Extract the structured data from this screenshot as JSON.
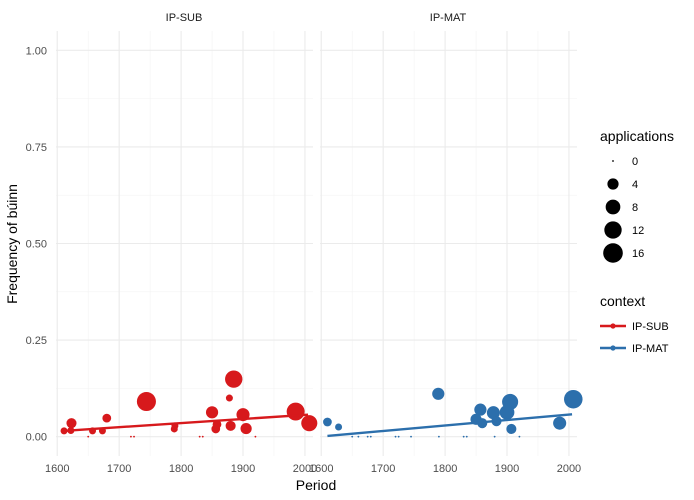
{
  "chart_data": {
    "type": "scatter",
    "xlabel": "Period",
    "ylabel": "Frequency of búinn",
    "xlim": [
      1598,
      2013
    ],
    "ylim": [
      -0.05,
      1.05
    ],
    "x_ticks": [
      1600,
      1700,
      1800,
      1900,
      2000
    ],
    "x_minor_ticks": [
      1650,
      1750,
      1850,
      1950
    ],
    "y_ticks": [
      0.0,
      0.25,
      0.5,
      0.75,
      1.0
    ],
    "y_tick_labels": [
      "0.00",
      "0.25",
      "0.50",
      "0.75",
      "1.00"
    ],
    "y_minor_ticks": [
      0.125,
      0.375,
      0.625,
      0.875
    ],
    "grid": true,
    "size_legend": {
      "title": "applications",
      "values": [
        0,
        4,
        8,
        12,
        16
      ],
      "labels": [
        "0",
        "4",
        "8",
        "12",
        "16"
      ]
    },
    "color_legend": {
      "title": "context",
      "placement": "right",
      "entries": [
        {
          "label": "IP-SUB",
          "color": "#d7191c"
        },
        {
          "label": "IP-MAT",
          "color": "#2c6fac"
        }
      ]
    },
    "panels": [
      {
        "strip": "IP-SUB",
        "context": "IP-SUB",
        "color": "#d7191c",
        "trend": {
          "x": [
            1610,
            2005
          ],
          "y": [
            0.015,
            0.057
          ]
        },
        "points": [
          {
            "x": 1611,
            "y": 0.015,
            "n": 1
          },
          {
            "x": 1623,
            "y": 0.035,
            "n": 3
          },
          {
            "x": 1622,
            "y": 0.016,
            "n": 1
          },
          {
            "x": 1650,
            "y": 0.0,
            "n": 0
          },
          {
            "x": 1657,
            "y": 0.015,
            "n": 1
          },
          {
            "x": 1673,
            "y": 0.015,
            "n": 1
          },
          {
            "x": 1680,
            "y": 0.048,
            "n": 2
          },
          {
            "x": 1719,
            "y": 0.0,
            "n": 0
          },
          {
            "x": 1724,
            "y": 0.0,
            "n": 0
          },
          {
            "x": 1744,
            "y": 0.091,
            "n": 15
          },
          {
            "x": 1789,
            "y": 0.02,
            "n": 1
          },
          {
            "x": 1790,
            "y": 0.028,
            "n": 1
          },
          {
            "x": 1830,
            "y": 0.0,
            "n": 0
          },
          {
            "x": 1835,
            "y": 0.0,
            "n": 0
          },
          {
            "x": 1850,
            "y": 0.063,
            "n": 5
          },
          {
            "x": 1856,
            "y": 0.02,
            "n": 2
          },
          {
            "x": 1858,
            "y": 0.032,
            "n": 2
          },
          {
            "x": 1878,
            "y": 0.1,
            "n": 1
          },
          {
            "x": 1880,
            "y": 0.028,
            "n": 3
          },
          {
            "x": 1885,
            "y": 0.149,
            "n": 12
          },
          {
            "x": 1900,
            "y": 0.057,
            "n": 6
          },
          {
            "x": 1905,
            "y": 0.021,
            "n": 4
          },
          {
            "x": 1920,
            "y": 0.0,
            "n": 0
          },
          {
            "x": 1985,
            "y": 0.065,
            "n": 13
          },
          {
            "x": 2007,
            "y": 0.035,
            "n": 10
          }
        ]
      },
      {
        "strip": "IP-MAT",
        "context": "IP-MAT",
        "color": "#2c6fac",
        "trend": {
          "x": [
            1610,
            2005
          ],
          "y": [
            0.002,
            0.058
          ]
        },
        "points": [
          {
            "x": 1610,
            "y": 0.038,
            "n": 2
          },
          {
            "x": 1628,
            "y": 0.025,
            "n": 1
          },
          {
            "x": 1650,
            "y": 0.0,
            "n": 0
          },
          {
            "x": 1660,
            "y": 0.0,
            "n": 0
          },
          {
            "x": 1675,
            "y": 0.0,
            "n": 0
          },
          {
            "x": 1680,
            "y": 0.0,
            "n": 0
          },
          {
            "x": 1720,
            "y": 0.0,
            "n": 0
          },
          {
            "x": 1725,
            "y": 0.0,
            "n": 0
          },
          {
            "x": 1745,
            "y": 0.0,
            "n": 0
          },
          {
            "x": 1789,
            "y": 0.111,
            "n": 5
          },
          {
            "x": 1790,
            "y": 0.0,
            "n": 0
          },
          {
            "x": 1830,
            "y": 0.0,
            "n": 0
          },
          {
            "x": 1835,
            "y": 0.0,
            "n": 0
          },
          {
            "x": 1850,
            "y": 0.045,
            "n": 4
          },
          {
            "x": 1857,
            "y": 0.07,
            "n": 5
          },
          {
            "x": 1860,
            "y": 0.035,
            "n": 3
          },
          {
            "x": 1878,
            "y": 0.062,
            "n": 6
          },
          {
            "x": 1880,
            "y": 0.0,
            "n": 0
          },
          {
            "x": 1883,
            "y": 0.04,
            "n": 3
          },
          {
            "x": 1900,
            "y": 0.063,
            "n": 8
          },
          {
            "x": 1905,
            "y": 0.09,
            "n": 10
          },
          {
            "x": 1907,
            "y": 0.02,
            "n": 3
          },
          {
            "x": 1920,
            "y": 0.0,
            "n": 0
          },
          {
            "x": 1985,
            "y": 0.035,
            "n": 6
          },
          {
            "x": 2007,
            "y": 0.097,
            "n": 14
          }
        ]
      }
    ]
  }
}
